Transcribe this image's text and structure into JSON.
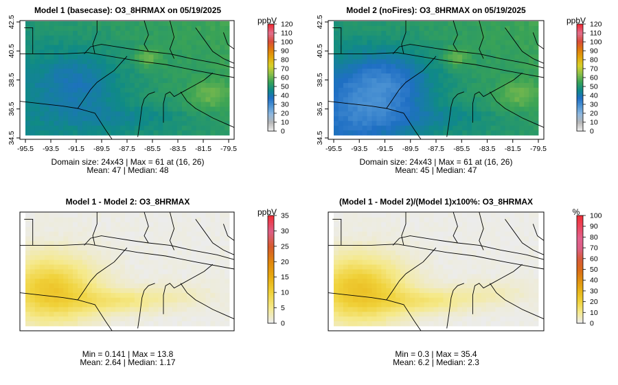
{
  "chart_data": [
    {
      "type": "heatmap",
      "title": "Model 1 (basecase): O3_8HRMAX on 05/19/2025",
      "xticks": [
        "-95.5",
        "-93.5",
        "-91.5",
        "-89.5",
        "-87.5",
        "-85.5",
        "-83.5",
        "-81.5",
        "-79.5"
      ],
      "yticks": [
        "34.5",
        "36.5",
        "38.5",
        "40.5",
        "42.5"
      ],
      "xlim": [
        -95.5,
        -79.5
      ],
      "ylim": [
        34.5,
        42.5
      ],
      "colorbar": {
        "unit": "ppbV",
        "ticks": [
          "0",
          "10",
          "20",
          "30",
          "40",
          "50",
          "60",
          "70",
          "80",
          "90",
          "100",
          "110",
          "120"
        ],
        "range": [
          0,
          120
        ],
        "colors": [
          "#ececec",
          "#b5b5b5",
          "#8fb8df",
          "#4f95d4",
          "#1f6fc4",
          "#0f8a86",
          "#3aa356",
          "#8cc04a",
          "#d8d02a",
          "#e2a70c",
          "#df7a0c",
          "#d94b3a",
          "#e0708e",
          "#f0303a"
        ]
      },
      "stats_line1": "Domain size: 24x43 | Max = 61 at (16, 26)",
      "stats_line2": "Mean: 47 |  Median: 48",
      "field_scheme": "ozone_base"
    },
    {
      "type": "heatmap",
      "title": "Model 2 (noFires): O3_8HRMAX on 05/19/2025",
      "xticks": [
        "-95.5",
        "-93.5",
        "-91.5",
        "-89.5",
        "-87.5",
        "-85.5",
        "-83.5",
        "-81.5",
        "-79.5"
      ],
      "yticks": [
        "34.5",
        "36.5",
        "38.5",
        "40.5",
        "42.5"
      ],
      "xlim": [
        -95.5,
        -79.5
      ],
      "ylim": [
        34.5,
        42.5
      ],
      "colorbar": {
        "unit": "ppbV",
        "ticks": [
          "0",
          "10",
          "20",
          "30",
          "40",
          "50",
          "60",
          "70",
          "80",
          "90",
          "100",
          "110",
          "120"
        ],
        "range": [
          0,
          120
        ],
        "colors": [
          "#ececec",
          "#b5b5b5",
          "#8fb8df",
          "#4f95d4",
          "#1f6fc4",
          "#0f8a86",
          "#3aa356",
          "#8cc04a",
          "#d8d02a",
          "#e2a70c",
          "#df7a0c",
          "#d94b3a",
          "#e0708e",
          "#f0303a"
        ]
      },
      "stats_line1": "Domain size: 24x43 | Max = 61 at (16, 26)",
      "stats_line2": "Mean: 45 |  Median: 47",
      "field_scheme": "ozone_nofire"
    },
    {
      "type": "heatmap",
      "title": "Model 1 - Model 2: O3_8HRMAX",
      "xticks": [],
      "yticks": [],
      "colorbar": {
        "unit": "ppbV",
        "ticks": [
          "0",
          "5",
          "10",
          "15",
          "20",
          "25",
          "30",
          "35"
        ],
        "range": [
          0,
          35
        ],
        "colors": [
          "#ececec",
          "#f5e98a",
          "#f0d23a",
          "#e8ac10",
          "#df860c",
          "#d65a2c",
          "#dc5f86",
          "#f0303a"
        ]
      },
      "stats_line1": "Min = 0.141 | Max = 13.8",
      "stats_line2": "Mean: 2.64 |  Median: 1.17",
      "field_scheme": "diff"
    },
    {
      "type": "heatmap",
      "title": "(Model 1 - Model 2)/(Model 1)x100%: O3_8HRMAX",
      "xticks": [],
      "yticks": [],
      "colorbar": {
        "unit": "%",
        "ticks": [
          "0",
          "10",
          "20",
          "30",
          "40",
          "50",
          "60",
          "70",
          "80",
          "90",
          "100"
        ],
        "range": [
          0,
          100
        ],
        "colors": [
          "#ececec",
          "#f5e98a",
          "#f0d23a",
          "#e8b418",
          "#e09010",
          "#da6a18",
          "#d65a3a",
          "#dc5f86",
          "#e3608c",
          "#ea4860",
          "#f0303a"
        ]
      },
      "stats_line1": "Min = 0.3 | Max = 35.4",
      "stats_line2": "Mean: 6.2 |  Median: 2.3",
      "field_scheme": "pct"
    }
  ]
}
